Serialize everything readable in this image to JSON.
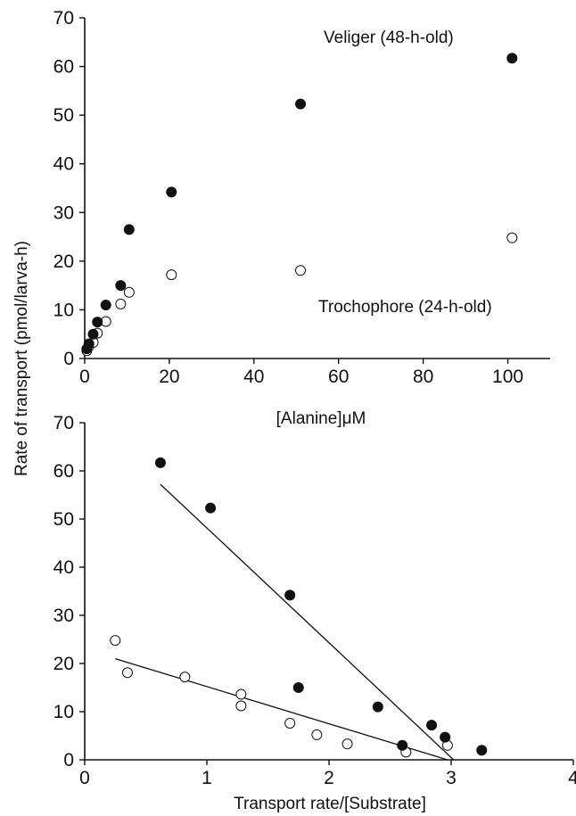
{
  "ylabel_shared": "Rate of transport (pmol/larva-h)",
  "chart_data": [
    {
      "type": "scatter",
      "xlabel": "[Alanine]μM",
      "ylabel": "Rate of transport (pmol/larva-h)",
      "xlim": [
        0,
        110
      ],
      "ylim": [
        0,
        70
      ],
      "xticks": [
        0,
        20,
        40,
        60,
        80,
        100
      ],
      "yticks": [
        0,
        10,
        20,
        30,
        40,
        50,
        60,
        70
      ],
      "series": [
        {
          "name": "Veliger (48-h-old)",
          "marker": "filled",
          "x": [
            0.5,
            1,
            2,
            3,
            5,
            8.5,
            10.5,
            20.5,
            51,
            101
          ],
          "y": [
            2,
            3,
            5,
            7.5,
            11,
            15,
            26.5,
            34.2,
            52.3,
            61.7
          ]
        },
        {
          "name": "Trochophore (24-h-old)",
          "marker": "open",
          "x": [
            0.5,
            1,
            2,
            3,
            5,
            8.5,
            10.5,
            20.5,
            51,
            101
          ],
          "y": [
            1.6,
            2.5,
            3.3,
            5.2,
            7.6,
            11.2,
            13.6,
            17.2,
            18.1,
            24.8
          ]
        }
      ]
    },
    {
      "type": "scatter",
      "xlabel": "Transport rate/[Substrate]",
      "ylabel": "Rate of transport (pmol/larva-h)",
      "xlim": [
        0,
        4
      ],
      "ylim": [
        0,
        70
      ],
      "xticks": [
        0,
        1,
        2,
        3,
        4
      ],
      "yticks": [
        0,
        10,
        20,
        30,
        40,
        50,
        60,
        70
      ],
      "series": [
        {
          "name": "Veliger (48-h-old)",
          "marker": "filled",
          "x": [
            0.62,
            1.03,
            1.68,
            1.75,
            2.4,
            2.6,
            2.84,
            2.95,
            3.25
          ],
          "y": [
            61.7,
            52.3,
            34.2,
            15,
            11,
            3,
            7.2,
            4.7,
            2
          ],
          "fit_line": {
            "x": [
              0.62,
              3.02
            ],
            "y": [
              57.2,
              0
            ]
          }
        },
        {
          "name": "Trochophore (24-h-old)",
          "marker": "open",
          "x": [
            0.25,
            0.35,
            0.82,
            1.28,
            1.28,
            1.68,
            1.9,
            2.15,
            2.63,
            2.97
          ],
          "y": [
            24.8,
            18.1,
            17.2,
            13.6,
            11.2,
            7.6,
            5.2,
            3.3,
            1.6,
            3
          ],
          "fit_line": {
            "x": [
              0.25,
              2.97
            ],
            "y": [
              21,
              0
            ]
          }
        }
      ]
    }
  ]
}
